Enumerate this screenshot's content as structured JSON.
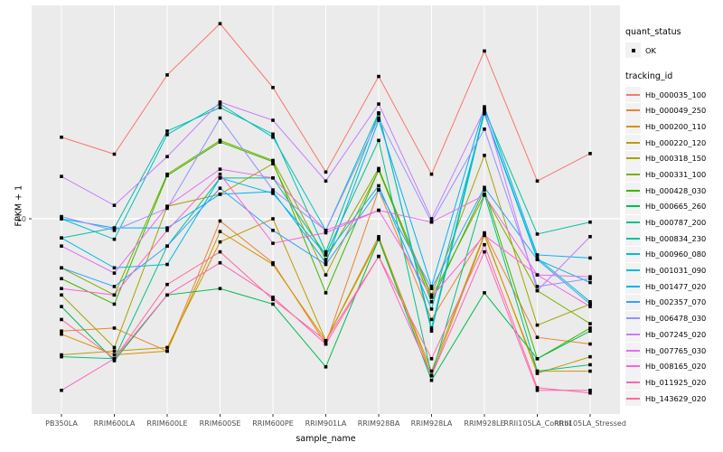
{
  "figure": {
    "bg": "#FFFFFF",
    "panel_bg": "#EBEBEB",
    "grid_color": "#FFFFFF",
    "axis_text_color": "#4D4D4D",
    "tick_color": "#333333",
    "point_color": "#000000"
  },
  "legend": {
    "quant_status_title": "quant_status",
    "ok_label": "OK",
    "tracking_id_title": "tracking_id"
  },
  "chart_data": {
    "type": "line",
    "title": "",
    "xlabel": "sample_name",
    "ylabel": "FPKM + 1",
    "y_scale": "log10",
    "y_major_ticks": [
      10
    ],
    "y_tick_labels": [
      "10"
    ],
    "ylim": [
      1.8,
      65
    ],
    "grid": "major-only",
    "legend_position": "right",
    "point_shape": "filled-square",
    "categories": [
      "PB350LA",
      "RRIM600LA",
      "RRIM600LE",
      "RRIM600SE",
      "RRIM600PE",
      "RRIM901LA",
      "RRIM928BA",
      "RRIM928LA",
      "RRIM928LE",
      "RRII105LA_Control",
      "RRII105LA_Stressed"
    ],
    "series": [
      {
        "name": "Hb_000035_100",
        "color": "#F8766D",
        "values": [
          21,
          18,
          37,
          59,
          33,
          15.3,
          36.5,
          15,
          46,
          14.1,
          18.1
        ]
      },
      {
        "name": "Hb_000049_250",
        "color": "#EA8331",
        "values": [
          3.6,
          3.7,
          3.0,
          9.8,
          6.7,
          3.2,
          13.0,
          4.0,
          8.8,
          3.4,
          3.2
        ]
      },
      {
        "name": "Hb_000200_110",
        "color": "#D89000",
        "values": [
          3.5,
          2.9,
          3.0,
          8.9,
          6.6,
          3.3,
          8.5,
          2.4,
          8.6,
          2.5,
          2.5
        ]
      },
      {
        "name": "Hb_000220_120",
        "color": "#C09B00",
        "values": [
          2.9,
          3.0,
          3.1,
          8.1,
          10.0,
          3.3,
          8.3,
          2.5,
          8.7,
          2.45,
          2.85
        ]
      },
      {
        "name": "Hb_000318_150",
        "color": "#A3A500",
        "values": [
          5.0,
          3.1,
          11.2,
          12.5,
          16.5,
          6.0,
          15.5,
          5.0,
          17.8,
          3.8,
          4.6
        ]
      },
      {
        "name": "Hb_000331_100",
        "color": "#7CAE00",
        "values": [
          6.4,
          5.0,
          15.0,
          20.4,
          17.0,
          6.9,
          15.8,
          4.9,
          12.4,
          5.2,
          3.85
        ]
      },
      {
        "name": "Hb_000428_030",
        "color": "#39B600",
        "values": [
          5.8,
          4.6,
          14.8,
          20.1,
          16.8,
          5.1,
          15.6,
          4.7,
          13.0,
          2.8,
          3.7
        ]
      },
      {
        "name": "Hb_000665_260",
        "color": "#00BB4E",
        "values": [
          4.5,
          2.75,
          5.0,
          5.3,
          4.6,
          2.6,
          8.3,
          2.3,
          5.1,
          2.8,
          3.6
        ]
      },
      {
        "name": "Hb_000787_200",
        "color": "#00C087",
        "values": [
          2.85,
          2.8,
          7.8,
          14.5,
          14.5,
          7.2,
          20.4,
          2.4,
          12.5,
          2.5,
          2.65
        ]
      },
      {
        "name": "Hb_000834_230",
        "color": "#00C1A3",
        "values": [
          8.4,
          9.2,
          22.2,
          27.5,
          21.6,
          7.4,
          26.0,
          3.7,
          27.0,
          8.7,
          9.7
        ]
      },
      {
        "name": "Hb_000960_080",
        "color": "#00BFC4",
        "values": [
          10.0,
          8.3,
          21.5,
          28.4,
          21.0,
          9.0,
          26.2,
          3.6,
          26.3,
          7.0,
          4.7
        ]
      },
      {
        "name": "Hb_001031_090",
        "color": "#00BAE0",
        "values": [
          8.4,
          6.4,
          6.6,
          14.5,
          12.6,
          7.2,
          13.5,
          4.4,
          26.0,
          6.9,
          5.6
        ]
      },
      {
        "name": "Hb_001477_020",
        "color": "#00B0F6",
        "values": [
          10.0,
          9.2,
          9.2,
          12.5,
          12.8,
          6.7,
          24.5,
          5.4,
          27.7,
          7.2,
          7.0
        ]
      },
      {
        "name": "Hb_002357_070",
        "color": "#35A2FF",
        "values": [
          6.4,
          5.4,
          7.8,
          13.2,
          9.0,
          6.6,
          13.0,
          5.3,
          13.3,
          6.9,
          4.6
        ]
      },
      {
        "name": "Hb_006478_030",
        "color": "#9590FF",
        "values": [
          10.2,
          9.0,
          11.0,
          25.0,
          13.0,
          9.0,
          25.0,
          9.7,
          22.6,
          5.4,
          5.8
        ]
      },
      {
        "name": "Hb_007245_020",
        "color": "#C77CFF",
        "values": [
          14.7,
          11.3,
          17.6,
          28.9,
          24.5,
          14.1,
          28.4,
          10.0,
          27.0,
          5.2,
          8.5
        ]
      },
      {
        "name": "Hb_007765_030",
        "color": "#E76BF3",
        "values": [
          7.8,
          6.1,
          11.2,
          15.7,
          14.5,
          9.0,
          10.8,
          9.7,
          12.4,
          6.0,
          5.9
        ]
      },
      {
        "name": "Hb_008165_020",
        "color": "#FA62DB",
        "values": [
          5.3,
          5.0,
          9.0,
          15.0,
          8.0,
          8.8,
          10.8,
          4.9,
          8.6,
          6.0,
          4.5
        ]
      },
      {
        "name": "Hb_011925_020",
        "color": "#FF62BC",
        "values": [
          2.1,
          2.8,
          5.0,
          6.7,
          4.9,
          3.2,
          7.1,
          2.4,
          7.4,
          2.1,
          2.1
        ]
      },
      {
        "name": "Hb_143629_020",
        "color": "#FF6A98",
        "values": [
          4.0,
          2.8,
          5.5,
          7.4,
          4.8,
          3.3,
          7.1,
          2.8,
          7.9,
          2.15,
          2.05
        ]
      }
    ]
  }
}
